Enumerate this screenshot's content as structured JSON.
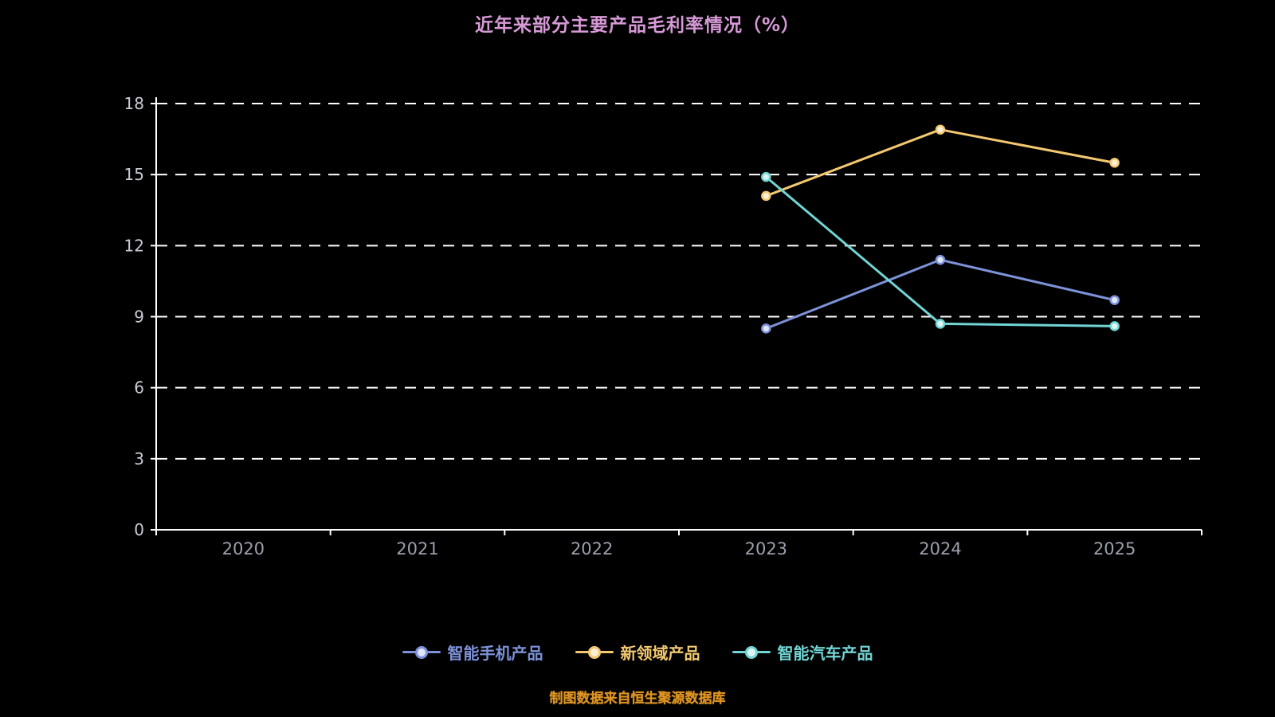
{
  "title": "近年来部分主要产品毛利率情况（%）",
  "footer": "制图数据来自恒生聚源数据库",
  "colors": {
    "background": "#000000",
    "title": "#d79ad7",
    "footer": "#dd9322",
    "axis": "#ffffff",
    "grid": "#ffffff",
    "x_tick": "#9aa0ac",
    "y_tick": "#c9ccd6"
  },
  "chart_data": {
    "type": "line",
    "categories": [
      "2020",
      "2021",
      "2022",
      "2023",
      "2024",
      "2025"
    ],
    "series": [
      {
        "key": "smartphone-products",
        "name": "智能手机产品",
        "color": "#7d92d9",
        "marker_fill": "#dfe6f6",
        "values": [
          null,
          null,
          null,
          8.5,
          11.4,
          9.7
        ]
      },
      {
        "key": "new-field-products",
        "name": "新领域产品",
        "color": "#f3c871",
        "marker_fill": "#fbf0d5",
        "values": [
          null,
          null,
          null,
          14.1,
          16.9,
          15.5
        ]
      },
      {
        "key": "smart-vehicle-products",
        "name": "智能汽车产品",
        "color": "#72d5d5",
        "marker_fill": "#def5f3",
        "values": [
          null,
          null,
          null,
          14.9,
          8.7,
          8.6
        ]
      }
    ],
    "ylim": [
      0,
      18
    ],
    "y_ticks": [
      0,
      3,
      6,
      9,
      12,
      15,
      18
    ],
    "grid": "dashed-horizontal",
    "legend_position": "bottom"
  }
}
